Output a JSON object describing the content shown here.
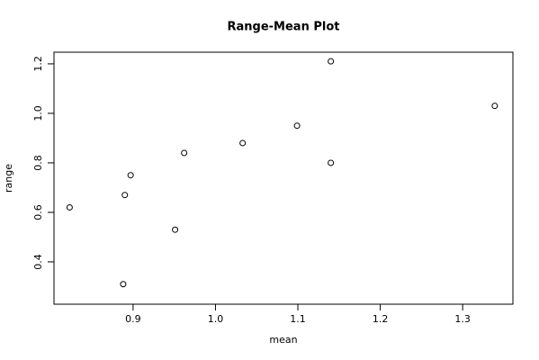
{
  "chart_data": {
    "type": "scatter",
    "title": "Range-Mean Plot",
    "x_label": "mean",
    "y_label": "range",
    "x": [
      0.823,
      0.888,
      0.89,
      0.897,
      0.951,
      0.962,
      1.033,
      1.099,
      1.14,
      1.14,
      1.339
    ],
    "values": [
      0.62,
      0.31,
      0.67,
      0.75,
      0.53,
      0.84,
      0.88,
      0.95,
      0.8,
      1.21,
      1.03
    ],
    "color": "#000000",
    "xlim": [
      0.804,
      1.361
    ],
    "ylim": [
      0.229,
      1.247
    ],
    "xticks": [
      0.9,
      {
        "value": 1.0,
        "label": "1.0"
      },
      1.1,
      1.2,
      1.3
    ],
    "yticks": [
      0.4,
      0.6,
      0.8,
      {
        "value": 1.0,
        "label": "1.0"
      },
      1.2
    ]
  }
}
